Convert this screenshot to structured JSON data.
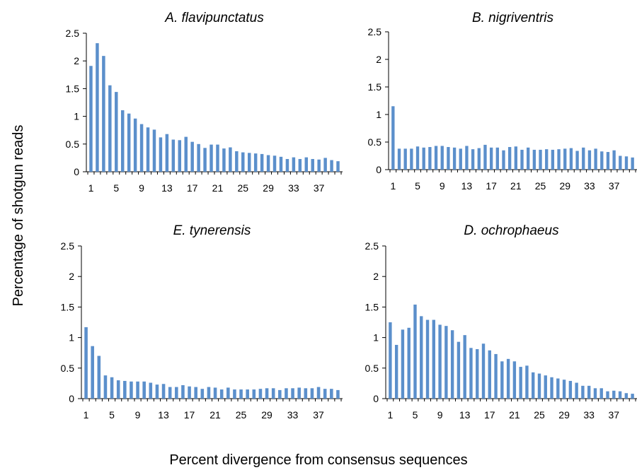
{
  "figure": {
    "ylabel": "Percentage of shotgun reads",
    "xlabel": "Percent divergence from consensus sequences",
    "bar_color": "#5b8fcb",
    "axis_color": "#000000"
  },
  "chart_data": [
    {
      "type": "bar",
      "title": "A. flavipunctatus",
      "categories": [
        1,
        2,
        3,
        4,
        5,
        6,
        7,
        8,
        9,
        10,
        11,
        12,
        13,
        14,
        15,
        16,
        17,
        18,
        19,
        20,
        21,
        22,
        23,
        24,
        25,
        26,
        27,
        28,
        29,
        30,
        31,
        32,
        33,
        34,
        35,
        36,
        37,
        38,
        39,
        40
      ],
      "values": [
        1.91,
        2.32,
        2.09,
        1.56,
        1.44,
        1.11,
        1.05,
        0.96,
        0.86,
        0.8,
        0.76,
        0.62,
        0.68,
        0.58,
        0.57,
        0.63,
        0.54,
        0.5,
        0.43,
        0.49,
        0.49,
        0.42,
        0.44,
        0.37,
        0.35,
        0.34,
        0.33,
        0.32,
        0.3,
        0.29,
        0.27,
        0.23,
        0.26,
        0.23,
        0.26,
        0.23,
        0.22,
        0.25,
        0.21,
        0.19
      ],
      "xticks": [
        "1",
        "5",
        "9",
        "13",
        "17",
        "21",
        "25",
        "29",
        "33",
        "37"
      ],
      "yticks": [
        "0",
        "0.5",
        "1",
        "1.5",
        "2",
        "2.5"
      ],
      "ylim": [
        0,
        2.5
      ]
    },
    {
      "type": "bar",
      "title": "B. nigriventris",
      "categories": [
        1,
        2,
        3,
        4,
        5,
        6,
        7,
        8,
        9,
        10,
        11,
        12,
        13,
        14,
        15,
        16,
        17,
        18,
        19,
        20,
        21,
        22,
        23,
        24,
        25,
        26,
        27,
        28,
        29,
        30,
        31,
        32,
        33,
        34,
        35,
        36,
        37,
        38,
        39,
        40
      ],
      "values": [
        1.15,
        0.38,
        0.38,
        0.38,
        0.42,
        0.4,
        0.41,
        0.43,
        0.43,
        0.41,
        0.4,
        0.38,
        0.43,
        0.37,
        0.39,
        0.45,
        0.4,
        0.4,
        0.35,
        0.41,
        0.42,
        0.36,
        0.4,
        0.36,
        0.36,
        0.37,
        0.36,
        0.37,
        0.38,
        0.39,
        0.34,
        0.4,
        0.35,
        0.38,
        0.33,
        0.32,
        0.35,
        0.25,
        0.24,
        0.22
      ],
      "xticks": [
        "1",
        "5",
        "9",
        "13",
        "17",
        "21",
        "25",
        "29",
        "33",
        "37"
      ],
      "yticks": [
        "0",
        "0.5",
        "1",
        "1.5",
        "2",
        "2.5"
      ],
      "ylim": [
        0,
        2.5
      ]
    },
    {
      "type": "bar",
      "title": "E. tynerensis",
      "categories": [
        1,
        2,
        3,
        4,
        5,
        6,
        7,
        8,
        9,
        10,
        11,
        12,
        13,
        14,
        15,
        16,
        17,
        18,
        19,
        20,
        21,
        22,
        23,
        24,
        25,
        26,
        27,
        28,
        29,
        30,
        31,
        32,
        33,
        34,
        35,
        36,
        37,
        38,
        39,
        40
      ],
      "values": [
        1.17,
        0.86,
        0.7,
        0.38,
        0.35,
        0.3,
        0.29,
        0.28,
        0.28,
        0.28,
        0.26,
        0.23,
        0.24,
        0.19,
        0.19,
        0.22,
        0.2,
        0.19,
        0.16,
        0.19,
        0.18,
        0.15,
        0.18,
        0.15,
        0.15,
        0.15,
        0.15,
        0.16,
        0.17,
        0.17,
        0.14,
        0.17,
        0.17,
        0.18,
        0.17,
        0.17,
        0.19,
        0.16,
        0.16,
        0.14
      ],
      "xticks": [
        "1",
        "5",
        "9",
        "13",
        "17",
        "21",
        "25",
        "29",
        "33",
        "37"
      ],
      "yticks": [
        "0",
        "0.5",
        "1",
        "1.5",
        "2",
        "2.5"
      ],
      "ylim": [
        0,
        2.5
      ]
    },
    {
      "type": "bar",
      "title": "D. ochrophaeus",
      "categories": [
        1,
        2,
        3,
        4,
        5,
        6,
        7,
        8,
        9,
        10,
        11,
        12,
        13,
        14,
        15,
        16,
        17,
        18,
        19,
        20,
        21,
        22,
        23,
        24,
        25,
        26,
        27,
        28,
        29,
        30,
        31,
        32,
        33,
        34,
        35,
        36,
        37,
        38,
        39,
        40
      ],
      "values": [
        1.25,
        0.88,
        1.13,
        1.16,
        1.54,
        1.35,
        1.29,
        1.29,
        1.21,
        1.19,
        1.12,
        0.93,
        1.04,
        0.83,
        0.81,
        0.9,
        0.79,
        0.73,
        0.61,
        0.65,
        0.61,
        0.52,
        0.54,
        0.43,
        0.41,
        0.38,
        0.35,
        0.33,
        0.31,
        0.29,
        0.26,
        0.21,
        0.21,
        0.17,
        0.17,
        0.12,
        0.13,
        0.12,
        0.09,
        0.08
      ],
      "xticks": [
        "1",
        "5",
        "9",
        "13",
        "17",
        "21",
        "25",
        "29",
        "33",
        "37"
      ],
      "yticks": [
        "0",
        "0.5",
        "1",
        "1.5",
        "2",
        "2.5"
      ],
      "ylim": [
        0,
        2.5
      ]
    }
  ]
}
